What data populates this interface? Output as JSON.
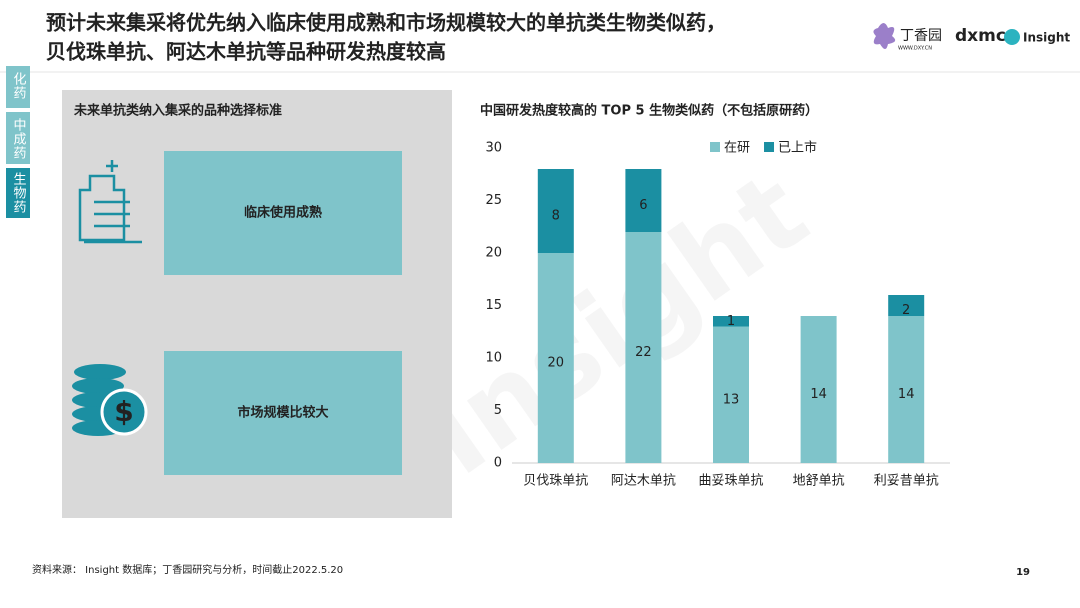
{
  "header": {
    "title": [
      "预计未来集采将优先纳入临床使用成熟和市场规模较大的单抗类生物类似药，",
      "贝伐珠单抗、阿达木单抗等品种研发热度较高"
    ],
    "logos": [
      "丁香园",
      "WWW.DXY.CN",
      "dxmc",
      "Insight"
    ]
  },
  "tabs": [
    "化药",
    "中成药",
    "生物药"
  ],
  "criteria": {
    "title": "未来单抗类纳入集采的品种选择标准",
    "items": [
      "临床使用成熟",
      "市场规模比较大"
    ]
  },
  "chart_data": {
    "type": "stacked-bar",
    "title": "中国研发热度较高的 TOP 5 生物类似药（不包括原研药）",
    "categories": [
      "贝伐珠单抗",
      "阿达木单抗",
      "曲妥珠单抗",
      "地舒单抗",
      "利妥昔单抗"
    ],
    "series": [
      {
        "name": "在研",
        "color": "#7fc4ca",
        "values": [
          20,
          22,
          13,
          14,
          14
        ]
      },
      {
        "name": "已上市",
        "color": "#1b8fa2",
        "values": [
          8,
          6,
          1,
          null,
          2
        ]
      }
    ],
    "ylim": [
      0,
      30
    ],
    "yticks": [
      0,
      5,
      10,
      15,
      20,
      25,
      30
    ],
    "grid": false,
    "legend": "top"
  },
  "watermark": "Insight",
  "footer": {
    "source": "资料来源： Insight 数据库；丁香园研究与分析，时间截止2022.5.20",
    "page": "19"
  }
}
